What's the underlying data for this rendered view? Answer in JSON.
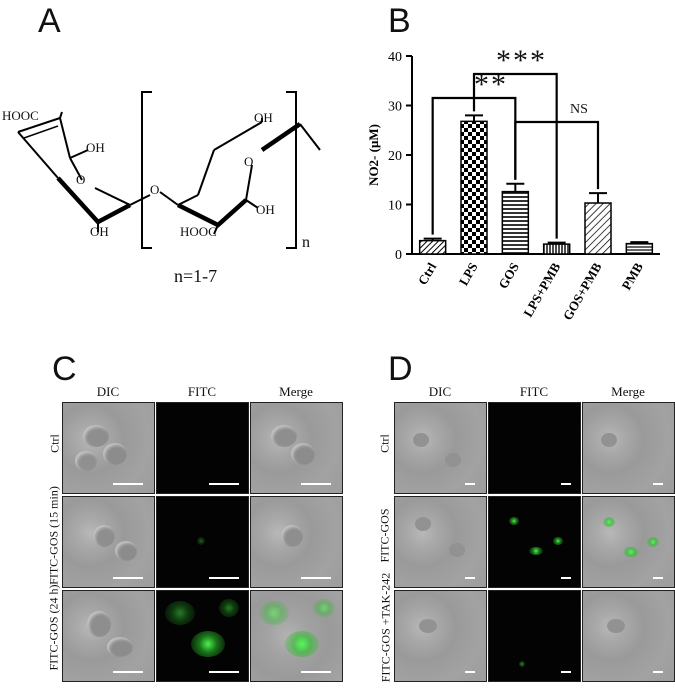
{
  "panels": {
    "a": {
      "letter": "A",
      "structure_labels": {
        "hooc1": "HOOC",
        "oh1": "OH",
        "o_ring1": "O",
        "o_link": "O",
        "oh2": "OH",
        "oh3": "OH",
        "o_ring2": "O",
        "oh4": "OH",
        "hooc2": "HOOC",
        "subscript": "n",
        "caption": "n=1-7"
      }
    },
    "b": {
      "letter": "B",
      "significance": {
        "s1": "**",
        "s2": "***",
        "s3": "NS"
      }
    },
    "c": {
      "letter": "C",
      "columns": [
        "DIC",
        "FITC",
        "Merge"
      ],
      "rows": [
        "Ctrl",
        "FITC-GOS (15 min)",
        "FITC-GOS (24 h)"
      ]
    },
    "d": {
      "letter": "D",
      "columns": [
        "DIC",
        "FITC",
        "Merge"
      ],
      "rows": [
        "Ctrl",
        "FITC-GOS",
        "FITC-GOS +TAK-242"
      ]
    }
  },
  "chart_data": {
    "type": "bar",
    "categories": [
      "Ctrl",
      "LPS",
      "GOS",
      "LPS+PMB",
      "GOS+PMB",
      "PMB"
    ],
    "values": [
      2.7,
      26.8,
      12.6,
      2.0,
      10.3,
      2.1
    ],
    "errors": [
      0.4,
      1.2,
      1.6,
      0.3,
      2.0,
      0.3
    ],
    "patterns": [
      "hatch-dense",
      "checker",
      "horizontal",
      "vertical",
      "diagonal",
      "horizontal-fine"
    ],
    "ylabel": "NO2- (μM)",
    "ylim": [
      0,
      40
    ],
    "yticks": [
      0,
      10,
      20,
      30,
      40
    ],
    "grid": false
  }
}
